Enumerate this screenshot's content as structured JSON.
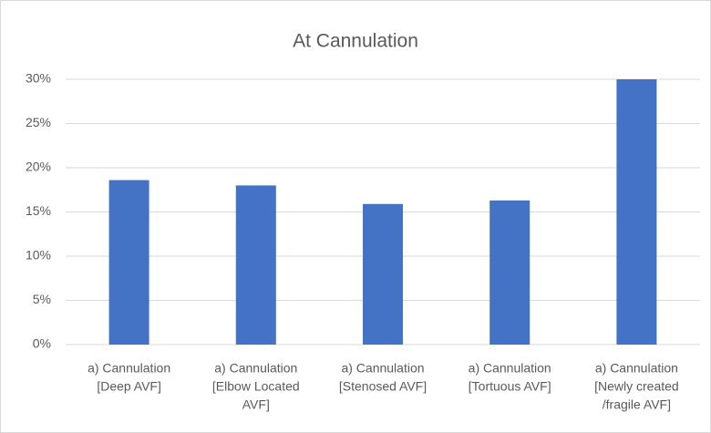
{
  "chart_data": {
    "type": "bar",
    "title": "At Cannulation",
    "categories": [
      [
        "a) Cannulation",
        "[Deep AVF]"
      ],
      [
        "a) Cannulation",
        "[Elbow Located",
        "AVF]"
      ],
      [
        "a) Cannulation",
        "[Stenosed AVF]"
      ],
      [
        "a) Cannulation",
        "[Tortuous AVF]"
      ],
      [
        "a) Cannulation",
        "[Newly created",
        "/fragile AVF]"
      ]
    ],
    "values": [
      18.6,
      18.0,
      15.9,
      16.3,
      30.0
    ],
    "color": "#4472c4",
    "ylim": [
      0,
      30
    ],
    "yticks": [
      {
        "value": 0,
        "label": "0%"
      },
      {
        "value": 5,
        "label": "5%"
      },
      {
        "value": 10,
        "label": "10%"
      },
      {
        "value": 15,
        "label": "15%"
      },
      {
        "value": 20,
        "label": "20%"
      },
      {
        "value": 25,
        "label": "25%"
      },
      {
        "value": 30,
        "label": "30%"
      }
    ],
    "grid": true
  }
}
